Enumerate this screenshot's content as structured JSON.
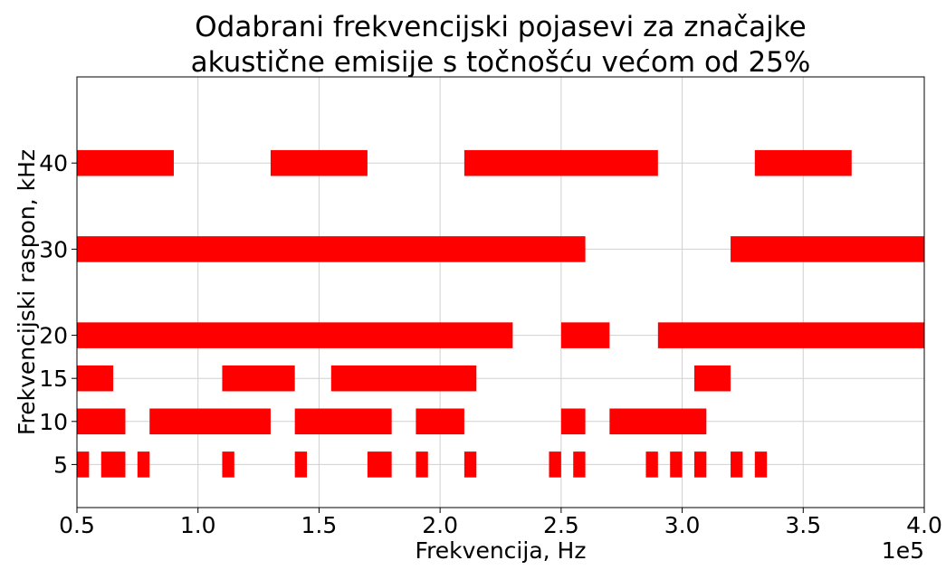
{
  "chart_data": {
    "type": "broken_barh",
    "title": [
      "Odabrani frekvencijski pojasevi za značajke",
      "akustične emisije s točnošću većom od 25%"
    ],
    "xlabel": "Frekvencija, Hz",
    "ylabel": "Frekvencijski raspon, kHz",
    "x_offset_label": "1e5",
    "color": "#ff0000",
    "bar_height": 3,
    "grid": true,
    "xlim": [
      50000,
      400000
    ],
    "ylim": [
      0,
      50
    ],
    "xticks": [
      {
        "value": 50000,
        "label": "0.5"
      },
      {
        "value": 100000,
        "label": "1.0"
      },
      {
        "value": 150000,
        "label": "1.5"
      },
      {
        "value": 200000,
        "label": "2.0"
      },
      {
        "value": 250000,
        "label": "2.5"
      },
      {
        "value": 300000,
        "label": "3.0"
      },
      {
        "value": 350000,
        "label": "3.5"
      },
      {
        "value": 400000,
        "label": "4.0"
      }
    ],
    "yticks": [
      5,
      10,
      15,
      20,
      30,
      40
    ],
    "rows": [
      {
        "y": 5,
        "ranges": [
          [
            50000,
            55000
          ],
          [
            60000,
            70000
          ],
          [
            75000,
            80000
          ],
          [
            110000,
            115000
          ],
          [
            140000,
            145000
          ],
          [
            170000,
            180000
          ],
          [
            190000,
            195000
          ],
          [
            210000,
            215000
          ],
          [
            245000,
            250000
          ],
          [
            255000,
            260000
          ],
          [
            285000,
            290000
          ],
          [
            295000,
            300000
          ],
          [
            305000,
            310000
          ],
          [
            320000,
            325000
          ],
          [
            330000,
            335000
          ]
        ]
      },
      {
        "y": 10,
        "ranges": [
          [
            50000,
            70000
          ],
          [
            80000,
            130000
          ],
          [
            140000,
            180000
          ],
          [
            190000,
            210000
          ],
          [
            250000,
            260000
          ],
          [
            270000,
            310000
          ]
        ]
      },
      {
        "y": 15,
        "ranges": [
          [
            50000,
            65000
          ],
          [
            110000,
            140000
          ],
          [
            155000,
            215000
          ],
          [
            305000,
            320000
          ]
        ]
      },
      {
        "y": 20,
        "ranges": [
          [
            50000,
            230000
          ],
          [
            250000,
            270000
          ],
          [
            290000,
            400000
          ]
        ]
      },
      {
        "y": 30,
        "ranges": [
          [
            50000,
            260000
          ],
          [
            320000,
            400000
          ]
        ]
      },
      {
        "y": 40,
        "ranges": [
          [
            50000,
            90000
          ],
          [
            130000,
            170000
          ],
          [
            210000,
            290000
          ],
          [
            330000,
            370000
          ]
        ]
      }
    ]
  }
}
